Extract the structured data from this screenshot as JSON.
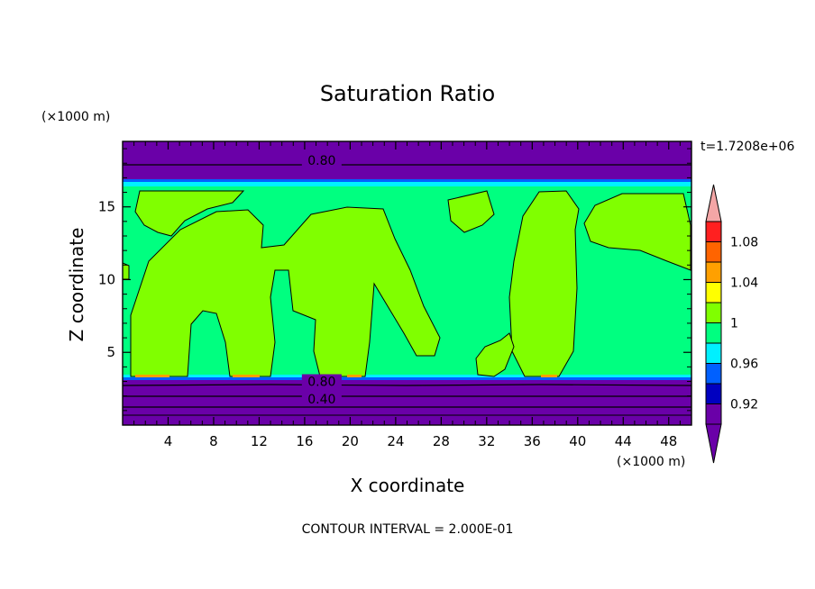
{
  "chart_data": {
    "type": "contour",
    "title": "Saturation Ratio",
    "xlabel": "X coordinate",
    "ylabel": "Z coordinate",
    "x_units": "(×1000 m)",
    "y_units": "(×1000 m)",
    "time_label": "t=1.7208e+06",
    "footer": "CONTOUR INTERVAL = 2.000E-01",
    "xlim": [
      0,
      50
    ],
    "ylim": [
      0,
      19.5
    ],
    "x_ticks": [
      4,
      8,
      12,
      16,
      20,
      24,
      28,
      32,
      36,
      40,
      44,
      48
    ],
    "y_ticks": [
      5,
      10,
      15
    ],
    "contour_labels": [
      {
        "text": "0.80",
        "x": 17.5,
        "z": 18.2
      },
      {
        "text": "0.80",
        "x": 17.5,
        "z": 3.0
      },
      {
        "text": "0.40",
        "x": 17.5,
        "z": 1.8
      }
    ],
    "colorbar": {
      "labels": [
        "1.08",
        "1.04",
        "1",
        "0.96",
        "0.92"
      ],
      "colors": {
        "top_arrow": "#f4a6a6",
        "c108": "#ff2020",
        "c106": "#ff6400",
        "c104": "#ffa000",
        "c102": "#ffff00",
        "c100": "#80ff00",
        "c098": "#00ff80",
        "c096": "#00f0ff",
        "c094": "#0060ff",
        "c092": "#0000c0",
        "bottom": "#6a00a8"
      }
    }
  }
}
